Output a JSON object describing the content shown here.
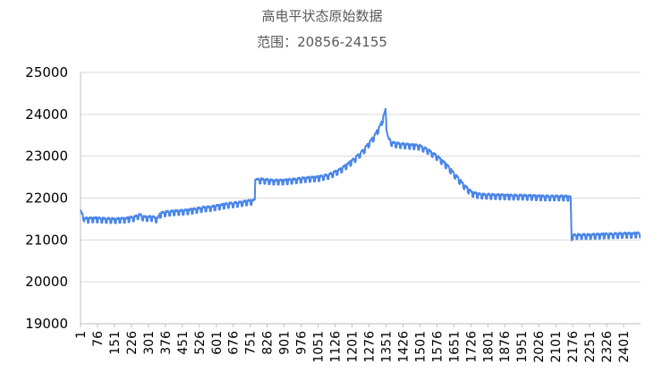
{
  "chart_data": {
    "type": "line",
    "title": "高电平状态原始数据",
    "subtitle": "范围：20856-24155",
    "xlabel": "",
    "ylabel": "",
    "x_range": [
      1,
      2476
    ],
    "ylim": [
      19000,
      25000
    ],
    "y_ticks": [
      19000,
      20000,
      21000,
      22000,
      23000,
      24000,
      25000
    ],
    "x_ticks": [
      "1",
      "76",
      "151",
      "226",
      "301",
      "376",
      "451",
      "526",
      "601",
      "676",
      "751",
      "826",
      "901",
      "976",
      "1051",
      "1126",
      "1201",
      "1276",
      "1351",
      "1426",
      "1501",
      "1576",
      "1651",
      "1726",
      "1801",
      "1876",
      "1951",
      "2026",
      "2101",
      "2176",
      "2251",
      "2326",
      "2401"
    ],
    "grid": "horizontal",
    "legend": "none",
    "series": [
      {
        "color": "#4a86e8",
        "points": [
          [
            1,
            21700
          ],
          [
            12,
            21600
          ],
          [
            20,
            21520
          ],
          [
            60,
            21530
          ],
          [
            100,
            21520
          ],
          [
            150,
            21510
          ],
          [
            200,
            21520
          ],
          [
            240,
            21560
          ],
          [
            260,
            21620
          ],
          [
            280,
            21560
          ],
          [
            300,
            21560
          ],
          [
            320,
            21560
          ],
          [
            340,
            21520
          ],
          [
            355,
            21650
          ],
          [
            380,
            21680
          ],
          [
            420,
            21700
          ],
          [
            460,
            21710
          ],
          [
            500,
            21740
          ],
          [
            540,
            21780
          ],
          [
            580,
            21800
          ],
          [
            620,
            21840
          ],
          [
            660,
            21880
          ],
          [
            700,
            21900
          ],
          [
            740,
            21940
          ],
          [
            772,
            21960
          ],
          [
            773,
            22440
          ],
          [
            800,
            22460
          ],
          [
            850,
            22430
          ],
          [
            900,
            22430
          ],
          [
            950,
            22460
          ],
          [
            1000,
            22490
          ],
          [
            1050,
            22510
          ],
          [
            1100,
            22570
          ],
          [
            1150,
            22700
          ],
          [
            1200,
            22900
          ],
          [
            1250,
            23150
          ],
          [
            1300,
            23500
          ],
          [
            1330,
            23800
          ],
          [
            1345,
            24050
          ],
          [
            1350,
            24155
          ],
          [
            1352,
            23650
          ],
          [
            1360,
            23450
          ],
          [
            1380,
            23330
          ],
          [
            1420,
            23300
          ],
          [
            1460,
            23280
          ],
          [
            1500,
            23260
          ],
          [
            1540,
            23150
          ],
          [
            1580,
            23000
          ],
          [
            1620,
            22800
          ],
          [
            1660,
            22550
          ],
          [
            1700,
            22300
          ],
          [
            1730,
            22150
          ],
          [
            1760,
            22100
          ],
          [
            1800,
            22090
          ],
          [
            1850,
            22080
          ],
          [
            1900,
            22070
          ],
          [
            1950,
            22070
          ],
          [
            2000,
            22060
          ],
          [
            2050,
            22050
          ],
          [
            2100,
            22050
          ],
          [
            2140,
            22050
          ],
          [
            2168,
            22040
          ],
          [
            2170,
            20960
          ],
          [
            2175,
            21120
          ],
          [
            2200,
            21130
          ],
          [
            2250,
            21130
          ],
          [
            2300,
            21140
          ],
          [
            2350,
            21150
          ],
          [
            2400,
            21160
          ],
          [
            2440,
            21160
          ],
          [
            2476,
            21170
          ]
        ]
      }
    ]
  }
}
